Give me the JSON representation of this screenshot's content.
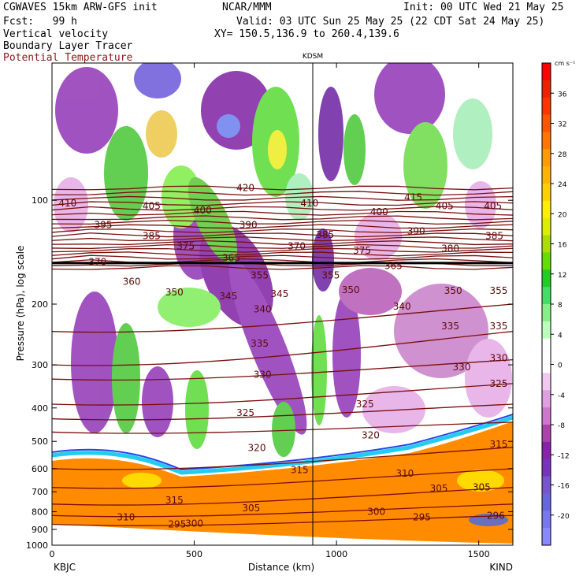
{
  "header": {
    "model": "CGWAVES 15km ARW-GFS init",
    "forecast": "Fcst:   99 h",
    "field1": "Vertical velocity",
    "field2": "Boundary Layer Tracer",
    "field3": "Potential Temperature",
    "center": "NCAR/MMM",
    "init": "Init: 00 UTC Wed 21 May 25",
    "valid": "Valid: 03 UTC Sun 25 May 25 (22 CDT Sat 24 May 25)",
    "xy": "XY= 150.5,136.9 to 260.4,139.6"
  },
  "chart_data": {
    "type": "heatmap",
    "title": "",
    "xlabel": "Distance (km)",
    "ylabel": "Pressure (hPa), log scale",
    "xlim": [
      0,
      1620
    ],
    "ylim": [
      1000,
      40
    ],
    "log_scale_y": true,
    "x_ticks": [
      0,
      500,
      1000,
      1500
    ],
    "y_ticks": [
      100,
      200,
      300,
      400,
      500,
      600,
      700,
      800,
      900,
      1000
    ],
    "station_left": "KBJC",
    "station_right": "KIND",
    "station_marker": {
      "label": "KDSM",
      "x": 935
    },
    "colorbar": {
      "unit": "cm s⁻¹",
      "levels": [
        36,
        32,
        28,
        24,
        20,
        16,
        12,
        8,
        4,
        0,
        -4,
        -8,
        -12,
        -16,
        -20
      ],
      "colors": [
        "#ff0000",
        "#ee2200",
        "#ff3300",
        "#ff5500",
        "#ff7700",
        "#ff9a00",
        "#ffb400",
        "#ffd000",
        "#ffee00",
        "#ddee00",
        "#aadd00",
        "#66dd00",
        "#22cc22",
        "#44dd66",
        "#88ee88",
        "#bbffbb",
        "#ffffff",
        "#ffffff",
        "#f0c8f0",
        "#e0a0e0",
        "#cc77cc",
        "#aa44aa",
        "#8822aa",
        "#7733bb",
        "#7755cc",
        "#6666dd",
        "#7777ee",
        "#8888ff"
      ]
    },
    "theta_labels": [
      {
        "v": "410",
        "x": 55,
        "p": 102
      },
      {
        "v": "405",
        "x": 350,
        "p": 104
      },
      {
        "v": "400",
        "x": 530,
        "p": 107
      },
      {
        "v": "420",
        "x": 680,
        "p": 92
      },
      {
        "v": "410",
        "x": 905,
        "p": 102
      },
      {
        "v": "415",
        "x": 1270,
        "p": 98
      },
      {
        "v": "400",
        "x": 1150,
        "p": 108
      },
      {
        "v": "405",
        "x": 1380,
        "p": 104
      },
      {
        "v": "405",
        "x": 1550,
        "p": 104
      },
      {
        "v": "395",
        "x": 180,
        "p": 118
      },
      {
        "v": "385",
        "x": 350,
        "p": 127
      },
      {
        "v": "390",
        "x": 690,
        "p": 118
      },
      {
        "v": "385",
        "x": 960,
        "p": 126
      },
      {
        "v": "390",
        "x": 1280,
        "p": 123
      },
      {
        "v": "385",
        "x": 1555,
        "p": 127
      },
      {
        "v": "375",
        "x": 470,
        "p": 136
      },
      {
        "v": "370",
        "x": 860,
        "p": 136
      },
      {
        "v": "375",
        "x": 1090,
        "p": 140
      },
      {
        "v": "380",
        "x": 1400,
        "p": 138
      },
      {
        "v": "370",
        "x": 160,
        "p": 151
      },
      {
        "v": "365",
        "x": 630,
        "p": 147
      },
      {
        "v": "365",
        "x": 1200,
        "p": 155
      },
      {
        "v": "360",
        "x": 280,
        "p": 172
      },
      {
        "v": "355",
        "x": 730,
        "p": 165
      },
      {
        "v": "355",
        "x": 980,
        "p": 165
      },
      {
        "v": "350",
        "x": 430,
        "p": 185
      },
      {
        "v": "350",
        "x": 1050,
        "p": 182
      },
      {
        "v": "350",
        "x": 1410,
        "p": 183
      },
      {
        "v": "355",
        "x": 1570,
        "p": 183
      },
      {
        "v": "345",
        "x": 620,
        "p": 190
      },
      {
        "v": "345",
        "x": 800,
        "p": 187
      },
      {
        "v": "340",
        "x": 740,
        "p": 207
      },
      {
        "v": "340",
        "x": 1230,
        "p": 203
      },
      {
        "v": "335",
        "x": 730,
        "p": 260
      },
      {
        "v": "335",
        "x": 1400,
        "p": 232
      },
      {
        "v": "335",
        "x": 1570,
        "p": 232
      },
      {
        "v": "330",
        "x": 740,
        "p": 320
      },
      {
        "v": "330",
        "x": 1440,
        "p": 305
      },
      {
        "v": "330",
        "x": 1570,
        "p": 287
      },
      {
        "v": "325",
        "x": 680,
        "p": 413
      },
      {
        "v": "325",
        "x": 1100,
        "p": 390
      },
      {
        "v": "325",
        "x": 1570,
        "p": 340
      },
      {
        "v": "320",
        "x": 720,
        "p": 522
      },
      {
        "v": "320",
        "x": 1120,
        "p": 480
      },
      {
        "v": "315",
        "x": 1570,
        "p": 510
      },
      {
        "v": "315",
        "x": 870,
        "p": 605
      },
      {
        "v": "310",
        "x": 1240,
        "p": 620
      },
      {
        "v": "315",
        "x": 430,
        "p": 740
      },
      {
        "v": "305",
        "x": 1360,
        "p": 685
      },
      {
        "v": "305",
        "x": 1510,
        "p": 680
      },
      {
        "v": "305",
        "x": 700,
        "p": 780
      },
      {
        "v": "310",
        "x": 260,
        "p": 830
      },
      {
        "v": "300",
        "x": 1140,
        "p": 800
      },
      {
        "v": "295",
        "x": 1300,
        "p": 830
      },
      {
        "v": "296",
        "x": 1560,
        "p": 820
      },
      {
        "v": "295",
        "x": 440,
        "p": 870
      },
      {
        "v": "300",
        "x": 500,
        "p": 865
      }
    ]
  }
}
